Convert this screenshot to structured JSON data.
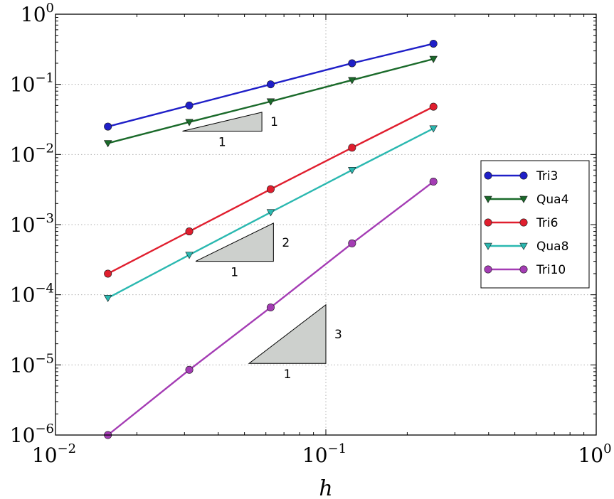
{
  "chart_data": {
    "type": "line",
    "xscale": "log",
    "yscale": "log",
    "xlim": [
      0.01,
      1
    ],
    "ylim": [
      1e-06,
      1
    ],
    "xlabel": "h",
    "ylabel": "",
    "grid": true,
    "legend_position": "right",
    "x_ticks": [
      {
        "value": 0.01,
        "base": "10",
        "exp": "−2"
      },
      {
        "value": 0.1,
        "base": "10",
        "exp": "−1"
      },
      {
        "value": 1,
        "base": "10",
        "exp": "0"
      }
    ],
    "y_ticks": [
      {
        "value": 1,
        "base": "10",
        "exp": "0"
      },
      {
        "value": 0.1,
        "base": "10",
        "exp": "−1"
      },
      {
        "value": 0.01,
        "base": "10",
        "exp": "−2"
      },
      {
        "value": 0.001,
        "base": "10",
        "exp": "−3"
      },
      {
        "value": 0.0001,
        "base": "10",
        "exp": "−4"
      },
      {
        "value": 1e-05,
        "base": "10",
        "exp": "−5"
      },
      {
        "value": 1e-06,
        "base": "10",
        "exp": "−6"
      }
    ],
    "x": [
      0.015625,
      0.03125,
      0.0625,
      0.125,
      0.25
    ],
    "series": [
      {
        "name": "Tri3",
        "color": "#1f1fc8",
        "marker": "circle",
        "values": [
          0.025,
          0.05,
          0.1,
          0.2,
          0.38
        ]
      },
      {
        "name": "Qua4",
        "color": "#1a6a2a",
        "marker": "triangle-down",
        "values": [
          0.0145,
          0.029,
          0.057,
          0.115,
          0.23
        ]
      },
      {
        "name": "Tri6",
        "color": "#e01e2e",
        "marker": "circle",
        "values": [
          0.0002,
          0.0008,
          0.0032,
          0.0125,
          0.048
        ]
      },
      {
        "name": "Qua8",
        "color": "#2ab8b0",
        "marker": "triangle-down",
        "values": [
          9e-05,
          0.00037,
          0.0015,
          0.006,
          0.0235
        ]
      },
      {
        "name": "Tri10",
        "color": "#a43cb4",
        "marker": "circle",
        "values": [
          1e-06,
          8.5e-06,
          6.6e-05,
          0.00054,
          0.0041
        ]
      }
    ],
    "slope_triangles": [
      {
        "x": [
          0.0295,
          0.058
        ],
        "y": [
          0.0215,
          0.04
        ],
        "slope_label": "1",
        "run_label": "1"
      },
      {
        "x": [
          0.033,
          0.064
        ],
        "y": [
          0.0003,
          0.00105
        ],
        "slope_label": "2",
        "run_label": "1"
      },
      {
        "x": [
          0.052,
          0.1
        ],
        "y": [
          1.05e-05,
          7.2e-05
        ],
        "slope_label": "3",
        "run_label": "1"
      }
    ]
  }
}
